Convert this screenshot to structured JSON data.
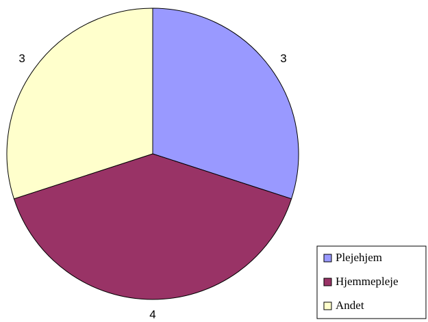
{
  "chart_data": {
    "type": "pie",
    "categories": [
      "Plejehjem",
      "Hjemmepleje",
      "Andet"
    ],
    "values": [
      3,
      4,
      3
    ],
    "colors": [
      "#9999ff",
      "#993366",
      "#ffffcc"
    ],
    "legend": "bottom-right"
  }
}
